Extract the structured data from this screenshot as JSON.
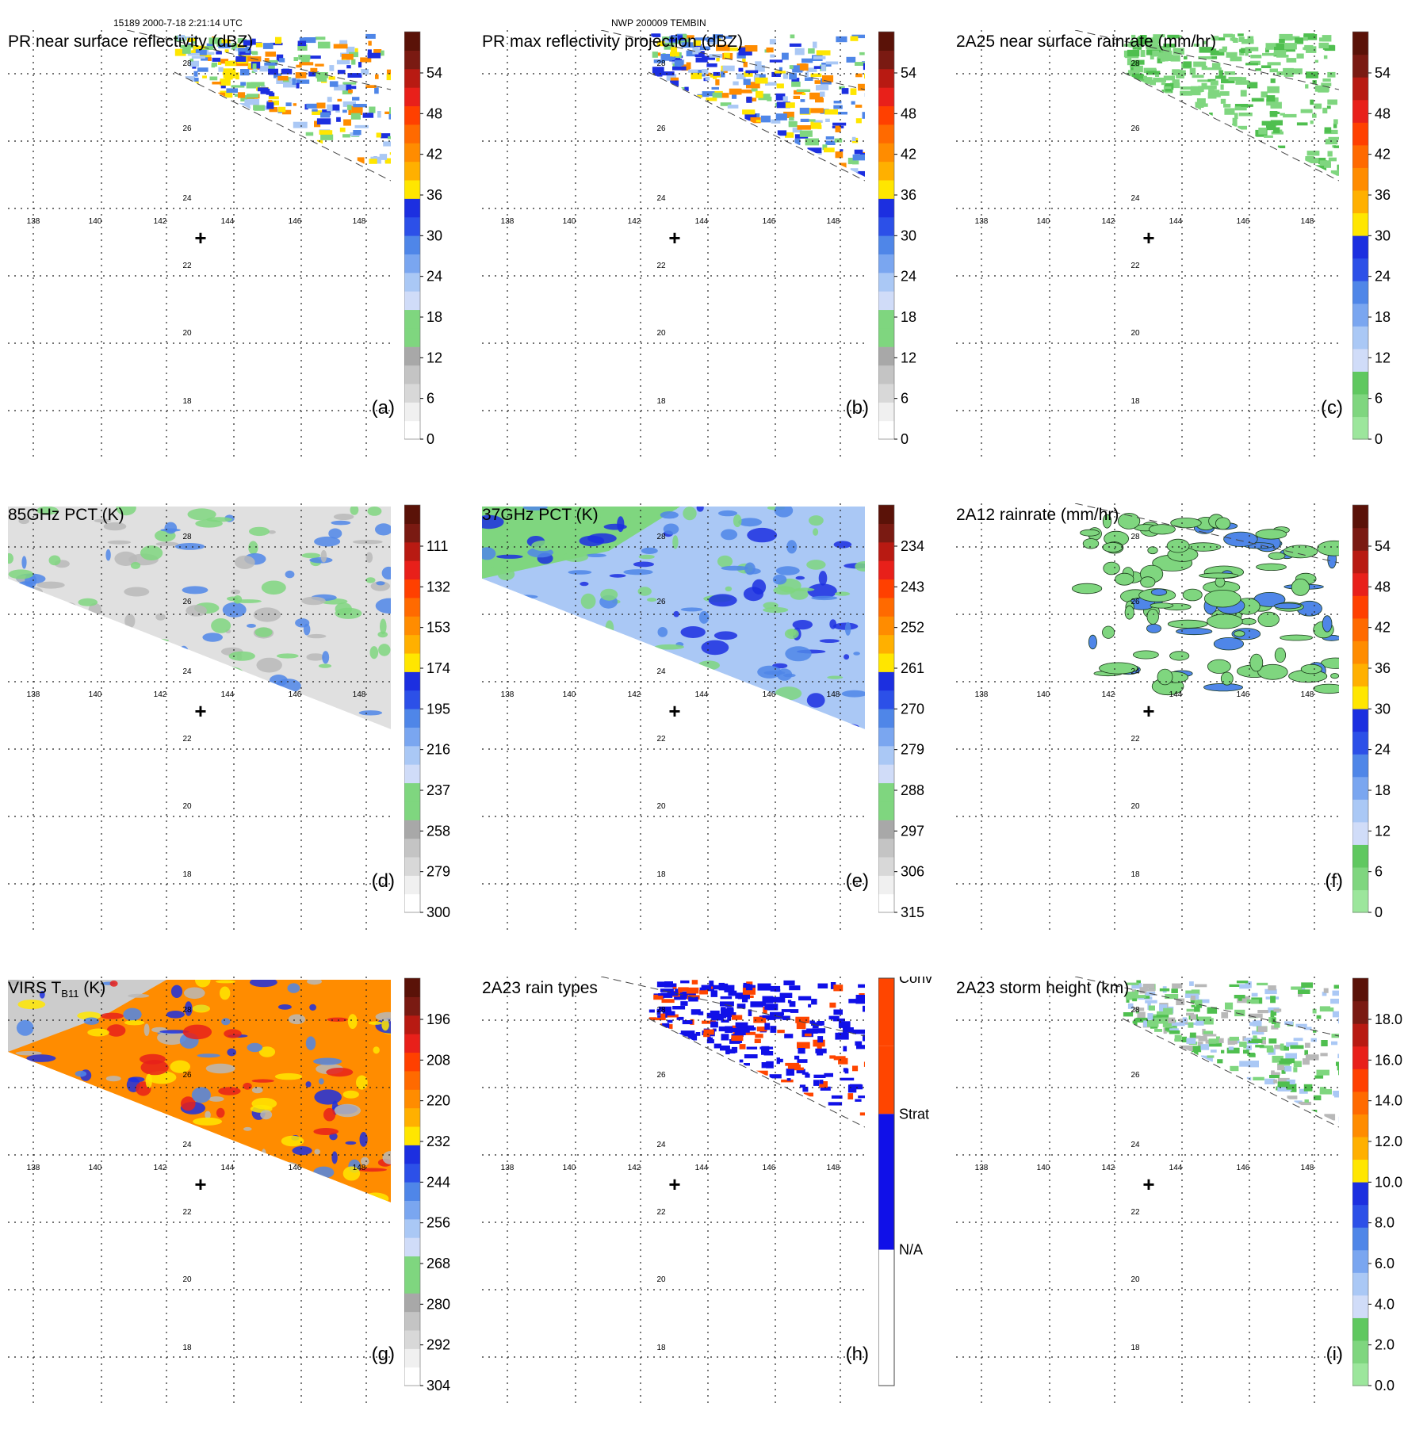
{
  "header": {
    "left": "15189 2000-7-18 2:21:14 UTC",
    "center": "NWP 200009 TEMBIN"
  },
  "map": {
    "lat_ticks": [
      "28",
      "26",
      "24",
      "22",
      "20",
      "18"
    ],
    "lon_ticks": [
      "138",
      "140",
      "142",
      "144",
      "146",
      "148"
    ],
    "storm_center": "+"
  },
  "colors": {
    "green": "#7fd67f",
    "dark_green": "#4fbf4f",
    "light_blue": "#aac8f5",
    "mid_blue": "#4f86e8",
    "blue": "#1c2fe0",
    "yellow": "#ffe600",
    "orange": "#ff8c00",
    "red": "#e8201a",
    "dark_red": "#7a1a12",
    "gray": "#b8b8b8",
    "conv": "#ff4500",
    "strat": "#1010e8"
  },
  "panels": [
    {
      "id": "a",
      "label": "(a)",
      "title": "PR near surface reflectivity (dBZ)",
      "swath": "pr",
      "colorbar": {
        "type": "reflectivity",
        "ticks": [
          "54",
          "48",
          "42",
          "36",
          "30",
          "24",
          "18",
          "12",
          "6",
          "0"
        ]
      }
    },
    {
      "id": "b",
      "label": "(b)",
      "title": "PR max reflectivity projection (dBZ)",
      "swath": "pr",
      "colorbar": {
        "type": "reflectivity",
        "ticks": [
          "54",
          "48",
          "42",
          "36",
          "30",
          "24",
          "18",
          "12",
          "6",
          "0"
        ]
      }
    },
    {
      "id": "c",
      "label": "(c)",
      "title": "2A25 near surface rainrate (mm/hr)",
      "swath": "pr",
      "colorbar": {
        "type": "rain",
        "ticks": [
          "54",
          "48",
          "42",
          "36",
          "30",
          "24",
          "18",
          "12",
          "6",
          "0"
        ]
      }
    },
    {
      "id": "d",
      "label": "(d)",
      "title": "85GHz PCT (K)",
      "swath": "tmi",
      "colorbar": {
        "type": "reflectivity",
        "ticks": [
          "111",
          "132",
          "153",
          "174",
          "195",
          "216",
          "237",
          "258",
          "279",
          "300"
        ]
      }
    },
    {
      "id": "e",
      "label": "(e)",
      "title": "37GHz PCT (K)",
      "swath": "tmi",
      "colorbar": {
        "type": "reflectivity",
        "ticks": [
          "234",
          "243",
          "252",
          "261",
          "270",
          "279",
          "288",
          "297",
          "306",
          "315"
        ]
      }
    },
    {
      "id": "f",
      "label": "(f)",
      "title": "2A12 rainrate (mm/hr)",
      "swath": "none",
      "colorbar": {
        "type": "rain",
        "ticks": [
          "54",
          "48",
          "42",
          "36",
          "30",
          "24",
          "18",
          "12",
          "6",
          "0"
        ]
      }
    },
    {
      "id": "g",
      "label": "(g)",
      "title": "VIRS T",
      "title_sub": "B11",
      "title_tail": " (K)",
      "swath": "tmi",
      "colorbar": {
        "type": "reflectivity",
        "ticks": [
          "196",
          "208",
          "220",
          "232",
          "244",
          "256",
          "268",
          "280",
          "292",
          "304"
        ]
      }
    },
    {
      "id": "h",
      "label": "(h)",
      "title": "2A23 rain types",
      "swath": "pr",
      "colorbar": {
        "type": "raintype",
        "ticks": [
          "Conv",
          "Strat",
          "N/A"
        ]
      }
    },
    {
      "id": "i",
      "label": "(i)",
      "title": "2A23 storm height (km)",
      "swath": "pr",
      "colorbar": {
        "type": "rain",
        "ticks": [
          "18.0",
          "16.0",
          "14.0",
          "12.0",
          "10.0",
          "8.0",
          "6.0",
          "4.0",
          "2.0",
          "0.0"
        ]
      }
    }
  ]
}
